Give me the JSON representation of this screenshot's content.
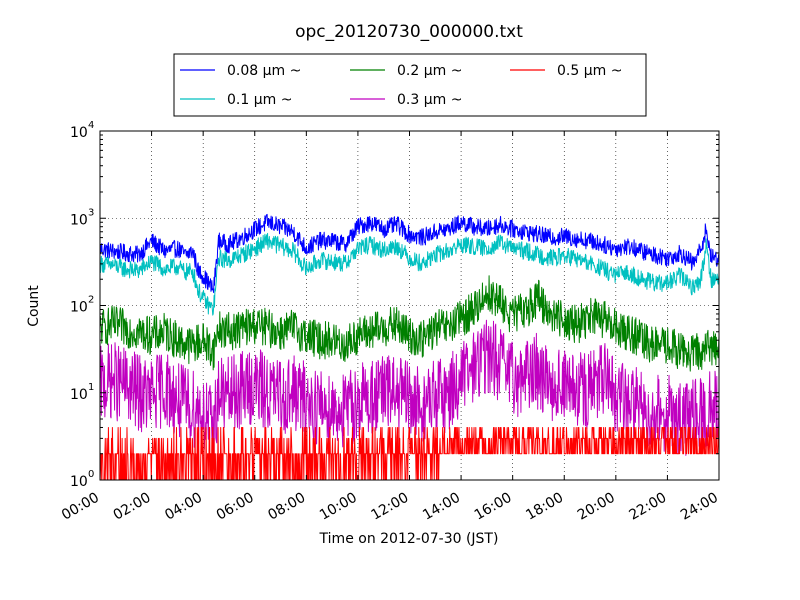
{
  "chart_data": {
    "type": "line",
    "title": "opc_20120730_000000.txt",
    "xlabel": "Time on 2012-07-30 (JST)",
    "ylabel": "Count",
    "yscale": "log",
    "ylim": [
      1,
      10000
    ],
    "xlim": [
      "00:00",
      "24:00"
    ],
    "x_ticks": [
      "00:00",
      "02:00",
      "04:00",
      "06:00",
      "08:00",
      "10:00",
      "12:00",
      "14:00",
      "16:00",
      "18:00",
      "20:00",
      "22:00",
      "24:00"
    ],
    "y_ticks": [
      {
        "base": "10",
        "exp": "0"
      },
      {
        "base": "10",
        "exp": "1"
      },
      {
        "base": "10",
        "exp": "2"
      },
      {
        "base": "10",
        "exp": "3"
      },
      {
        "base": "10",
        "exp": "4"
      }
    ],
    "grid": true,
    "legend_position": "top-center",
    "series": [
      {
        "name": "0.08 μm ~",
        "color": "#0000ff",
        "x": [
          0,
          0.5,
          1,
          1.5,
          2,
          2.5,
          3,
          3.3,
          3.6,
          3.8,
          4.0,
          4.2,
          4.4,
          4.6,
          5,
          5.5,
          6,
          6.5,
          7,
          7.5,
          8,
          8.5,
          9,
          9.5,
          10,
          10.5,
          11,
          11.5,
          12,
          12.5,
          13,
          13.5,
          14,
          14.5,
          15,
          15.5,
          16,
          16.5,
          17,
          17.5,
          18,
          18.5,
          19,
          19.5,
          20,
          20.5,
          21,
          21.5,
          22,
          22.5,
          23,
          23.3,
          23.5,
          23.7,
          24
        ],
        "y": [
          450,
          420,
          400,
          380,
          550,
          420,
          450,
          380,
          420,
          250,
          220,
          180,
          150,
          550,
          500,
          600,
          750,
          900,
          800,
          700,
          450,
          550,
          550,
          500,
          800,
          900,
          750,
          850,
          650,
          600,
          700,
          750,
          900,
          800,
          750,
          850,
          750,
          700,
          650,
          600,
          620,
          580,
          550,
          500,
          450,
          480,
          420,
          380,
          350,
          400,
          300,
          450,
          750,
          350,
          350
        ]
      },
      {
        "name": "0.1 μm ~",
        "color": "#00c0c0",
        "x": [
          0,
          0.5,
          1,
          1.5,
          2,
          2.5,
          3,
          3.3,
          3.6,
          3.8,
          4.0,
          4.2,
          4.4,
          4.6,
          5,
          5.5,
          6,
          6.5,
          7,
          7.5,
          8,
          8.5,
          9,
          9.5,
          10,
          10.5,
          11,
          11.5,
          12,
          12.5,
          13,
          13.5,
          14,
          14.5,
          15,
          15.5,
          16,
          16.5,
          17,
          17.5,
          18,
          18.5,
          19,
          19.5,
          20,
          20.5,
          21,
          21.5,
          22,
          22.5,
          23,
          23.3,
          23.5,
          23.7,
          24
        ],
        "y": [
          300,
          290,
          260,
          250,
          320,
          260,
          280,
          240,
          250,
          150,
          120,
          100,
          90,
          350,
          330,
          380,
          450,
          550,
          480,
          420,
          260,
          330,
          320,
          300,
          450,
          500,
          430,
          480,
          350,
          300,
          380,
          420,
          500,
          470,
          450,
          520,
          450,
          420,
          380,
          350,
          370,
          340,
          300,
          260,
          220,
          240,
          200,
          180,
          180,
          220,
          160,
          200,
          500,
          200,
          200
        ]
      },
      {
        "name": "0.2 μm ~",
        "color": "#008000",
        "x": [
          0,
          0.5,
          1,
          1.5,
          2,
          2.5,
          3,
          3.5,
          4,
          4.4,
          4.6,
          5,
          5.5,
          6,
          6.5,
          7,
          7.5,
          8,
          8.5,
          9,
          9.5,
          10,
          10.5,
          11,
          11.5,
          12,
          12.5,
          13,
          13.5,
          14,
          14.5,
          15,
          15.5,
          16,
          16.5,
          17,
          17.5,
          18,
          18.5,
          19,
          19.5,
          20,
          20.5,
          21,
          21.5,
          22,
          22.5,
          23,
          23.5,
          24
        ],
        "y": [
          55,
          60,
          55,
          50,
          45,
          50,
          40,
          35,
          40,
          30,
          55,
          50,
          55,
          60,
          55,
          50,
          55,
          45,
          40,
          40,
          35,
          45,
          50,
          55,
          60,
          45,
          40,
          55,
          55,
          70,
          90,
          140,
          110,
          75,
          90,
          120,
          80,
          70,
          60,
          75,
          70,
          55,
          50,
          40,
          35,
          35,
          30,
          28,
          32,
          35
        ]
      },
      {
        "name": "0.3 μm ~",
        "color": "#c000c0",
        "x": [
          0,
          0.5,
          1,
          1.5,
          2,
          2.5,
          3,
          3.5,
          4,
          4.4,
          4.6,
          5,
          5.5,
          6,
          6.5,
          7,
          7.5,
          8,
          8.5,
          9,
          9.5,
          10,
          10.5,
          11,
          11.5,
          12,
          12.5,
          13,
          13.5,
          14,
          14.5,
          15,
          15.5,
          16,
          16.5,
          17,
          17.5,
          18,
          18.5,
          19,
          19.5,
          20,
          20.5,
          21,
          21.5,
          22,
          22.5,
          23,
          23.5,
          24
        ],
        "y": [
          12,
          14,
          12,
          10,
          9,
          12,
          8,
          7,
          6,
          4,
          10,
          9,
          11,
          12,
          10,
          9,
          10,
          8,
          7,
          7,
          6,
          8,
          9,
          10,
          10,
          8,
          7,
          9,
          10,
          14,
          20,
          28,
          22,
          14,
          16,
          18,
          13,
          12,
          10,
          11,
          14,
          9,
          8,
          7,
          6,
          6,
          5,
          5,
          6,
          7
        ]
      },
      {
        "name": "0.5 μm ~",
        "color": "#ff0000",
        "x": [
          0,
          1,
          2,
          3,
          4,
          5,
          6,
          7,
          8,
          9,
          10,
          11,
          12,
          13,
          14,
          15,
          16,
          17,
          18,
          19,
          20,
          21,
          22,
          23,
          24
        ],
        "y": [
          1.6,
          1.5,
          1.6,
          1.5,
          1.4,
          1.6,
          1.7,
          1.5,
          1.6,
          1.5,
          1.6,
          1.7,
          1.8,
          2.2,
          2.6,
          3.0,
          2.6,
          2.4,
          2.6,
          2.5,
          2.8,
          2.6,
          2.4,
          2.5,
          2.4
        ]
      }
    ]
  }
}
